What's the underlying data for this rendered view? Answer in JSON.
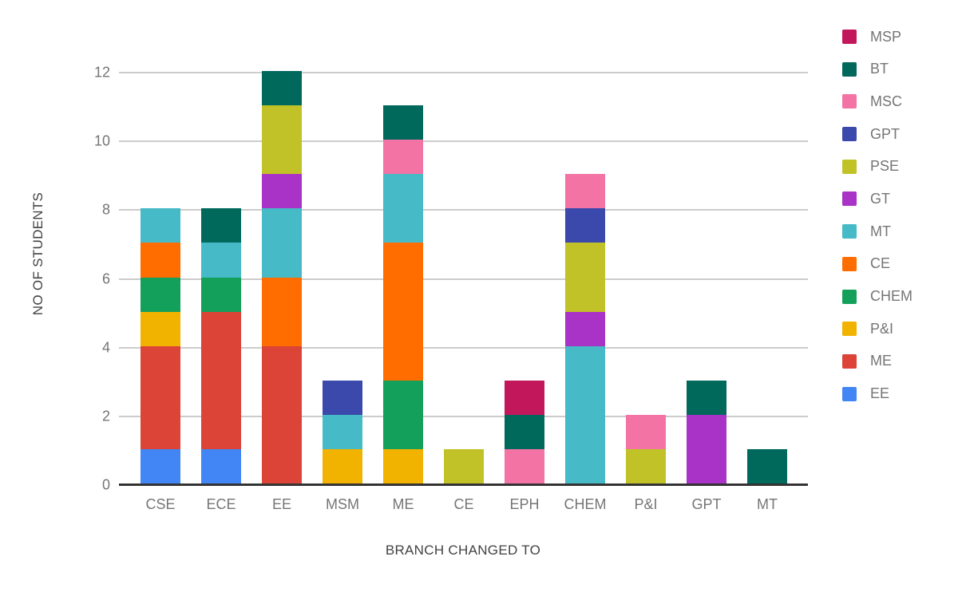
{
  "chart": {
    "y_axis_title": "NO OF STUDENTS",
    "x_axis_title": "BRANCH CHANGED TO",
    "y_ticks": [
      0,
      2,
      4,
      6,
      8,
      10,
      12
    ],
    "colors": {
      "gridline": "#cccccc",
      "axis_line": "#333333",
      "tick_text": "#757575",
      "axis_title_text": "#424242",
      "legend_text": "#757575",
      "background": "#ffffff"
    }
  },
  "chart_data": {
    "type": "bar",
    "stacked": true,
    "stack_order": "reverse-of-legend (legend top = topmost segment)",
    "title": "",
    "xlabel": "BRANCH CHANGED TO",
    "ylabel": "NO OF STUDENTS",
    "ylim": [
      0,
      12
    ],
    "grid": true,
    "legend_position": "right",
    "categories": [
      "CSE",
      "ECE",
      "EE",
      "MSM",
      "ME",
      "CE",
      "EPH",
      "CHEM",
      "P&I",
      "GPT",
      "MT"
    ],
    "series": [
      {
        "name": "MSP",
        "color": "#C2185B",
        "values": [
          0,
          0,
          0,
          0,
          0,
          0,
          1,
          0,
          0,
          0,
          0
        ]
      },
      {
        "name": "BT",
        "color": "#00695C",
        "values": [
          0,
          1,
          1,
          0,
          1,
          0,
          1,
          0,
          0,
          1,
          1
        ]
      },
      {
        "name": "MSC",
        "color": "#F373A5",
        "values": [
          0,
          0,
          0,
          0,
          1,
          0,
          1,
          1,
          1,
          0,
          0
        ]
      },
      {
        "name": "GPT",
        "color": "#3A49AB",
        "values": [
          0,
          0,
          0,
          1,
          0,
          0,
          0,
          1,
          0,
          0,
          0
        ]
      },
      {
        "name": "PSE",
        "color": "#C0C227",
        "values": [
          0,
          0,
          2,
          0,
          0,
          1,
          0,
          2,
          1,
          0,
          0
        ]
      },
      {
        "name": "GT",
        "color": "#A932C7",
        "values": [
          0,
          0,
          1,
          0,
          0,
          0,
          0,
          1,
          0,
          2,
          0
        ]
      },
      {
        "name": "MT",
        "color": "#46BAC6",
        "values": [
          1,
          1,
          2,
          1,
          2,
          0,
          0,
          4,
          0,
          0,
          0
        ]
      },
      {
        "name": "CE",
        "color": "#FF6D00",
        "values": [
          1,
          0,
          2,
          0,
          4,
          0,
          0,
          0,
          0,
          0,
          0
        ]
      },
      {
        "name": "CHEM",
        "color": "#12A05A",
        "values": [
          1,
          1,
          0,
          0,
          2,
          0,
          0,
          0,
          0,
          0,
          0
        ]
      },
      {
        "name": "P&I",
        "color": "#F2B200",
        "values": [
          1,
          0,
          0,
          1,
          1,
          0,
          0,
          0,
          0,
          0,
          0
        ]
      },
      {
        "name": "ME",
        "color": "#DB4437",
        "values": [
          3,
          4,
          4,
          0,
          0,
          0,
          0,
          0,
          0,
          0,
          0
        ]
      },
      {
        "name": "EE",
        "color": "#4285F4",
        "values": [
          1,
          1,
          0,
          0,
          0,
          0,
          0,
          0,
          0,
          0,
          0
        ]
      }
    ],
    "category_totals": [
      8,
      8,
      12,
      3,
      11,
      1,
      3,
      9,
      2,
      3,
      1
    ]
  }
}
